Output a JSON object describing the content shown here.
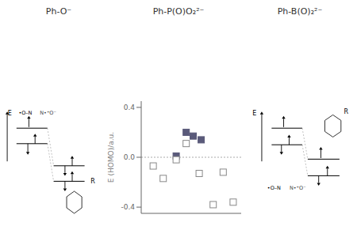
{
  "chart_data": {
    "type": "scatter",
    "annotations": [
      "Ph-O⁻",
      "Ph-P(O)O₂²⁻",
      "Ph-B(O)₂²⁻",
      "E",
      "•O–N",
      "N•⁺O⁻",
      "R",
      "E",
      "R",
      "•O–N",
      "N•⁺O⁻"
    ],
    "y_label": "E (HOMO)/a.u.",
    "xlim": [
      0,
      10
    ],
    "xticks": [],
    "ylim": [
      -0.45,
      0.45
    ],
    "yticks": [
      -0.4,
      {
        "value": 0.0,
        "label": "0.0"
      },
      0.4
    ],
    "tick_labels": "y",
    "grid": false,
    "hline": 0.0,
    "series": [
      {
        "marker": "square",
        "color": "#5a5a7a",
        "x": [
          3.5,
          4.5,
          5.2,
          6.0
        ],
        "values": [
          0.01,
          0.2,
          0.17,
          0.14
        ]
      },
      {
        "marker": "open_square",
        "color": "#888888",
        "x": [
          1.2,
          2.2,
          3.5,
          4.5,
          5.8,
          7.2,
          8.2,
          9.2
        ],
        "values": [
          -0.07,
          -0.17,
          -0.02,
          0.11,
          -0.13,
          -0.38,
          -0.12,
          -0.36
        ]
      }
    ]
  }
}
